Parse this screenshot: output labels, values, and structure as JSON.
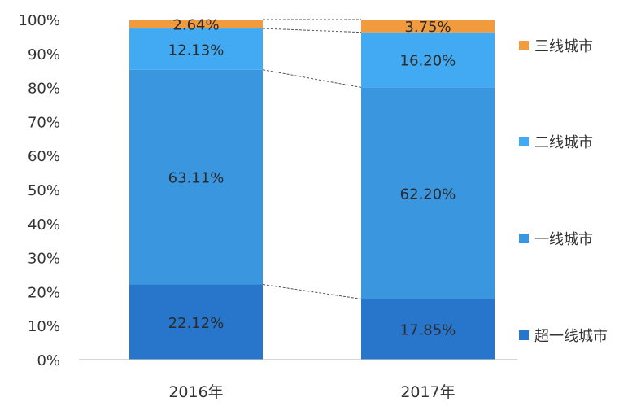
{
  "chart_data": {
    "type": "bar",
    "stacked": true,
    "categories": [
      "2016年",
      "2017年"
    ],
    "series": [
      {
        "name": "超一线城市",
        "values": [
          22.12,
          17.85
        ],
        "labels": [
          "22.12%",
          "17.85%"
        ],
        "color": "#2776cc"
      },
      {
        "name": "一线城市",
        "values": [
          63.11,
          62.2
        ],
        "labels": [
          "63.11%",
          "62.20%"
        ],
        "color": "#3b96e0"
      },
      {
        "name": "二线城市",
        "values": [
          12.13,
          16.2
        ],
        "labels": [
          "12.13%",
          "16.20%"
        ],
        "color": "#42aaf2"
      },
      {
        "name": "三线城市",
        "values": [
          2.64,
          3.75
        ],
        "labels": [
          "2.64%",
          "3.75%"
        ],
        "color": "#f29b3e"
      }
    ],
    "yticks": [
      "0%",
      "10%",
      "20%",
      "30%",
      "40%",
      "50%",
      "60%",
      "70%",
      "80%",
      "90%",
      "100%"
    ],
    "ylim": [
      0,
      100
    ],
    "legend_position": "right",
    "grid": false,
    "connector_lines": true
  }
}
